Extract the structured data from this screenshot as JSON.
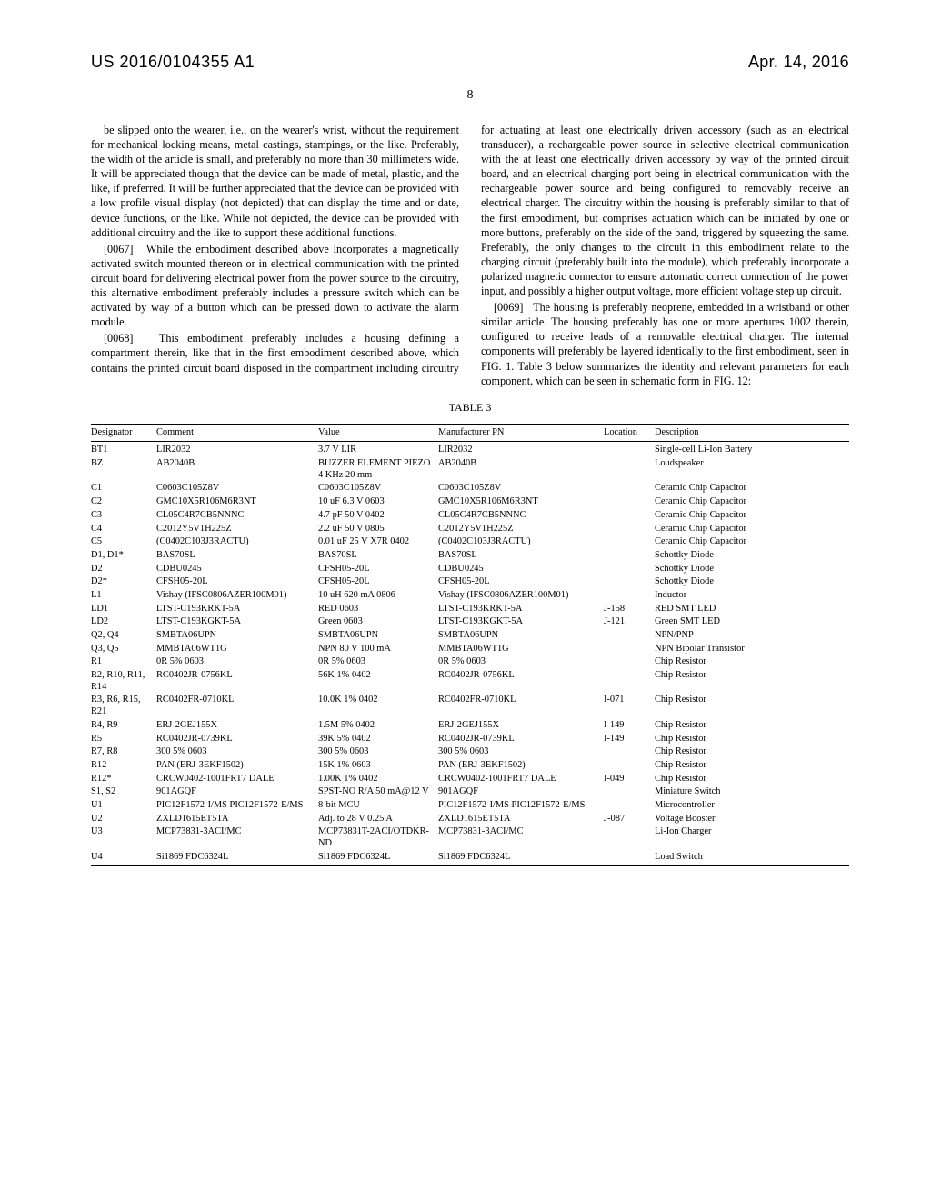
{
  "header": {
    "pubno": "US 2016/0104355 A1",
    "date": "Apr. 14, 2016"
  },
  "page_number": "8",
  "paragraphs": [
    {
      "tag": "",
      "text": "be slipped onto the wearer, i.e., on the wearer's wrist, without the requirement for mechanical locking means, metal castings, stampings, or the like. Preferably, the width of the article is small, and preferably no more than 30 millimeters wide. It will be appreciated though that the device can be made of metal, plastic, and the like, if preferred. It will be further appreciated that the device can be provided with a low profile visual display (not depicted) that can display the time and or date, device functions, or the like. While not depicted, the device can be provided with additional circuitry and the like to support these additional functions."
    },
    {
      "tag": "[0067]",
      "text": "While the embodiment described above incorporates a magnetically activated switch mounted thereon or in electrical communication with the printed circuit board for delivering electrical power from the power source to the circuitry, this alternative embodiment preferably includes a pressure switch which can be activated by way of a button which can be pressed down to activate the alarm module."
    },
    {
      "tag": "[0068]",
      "text": "This embodiment preferably includes a housing defining a compartment therein, like that in the first embodiment described above, which contains the printed circuit board disposed in the compartment including circuitry for actuating at least one electrically driven accessory (such as an electrical transducer), a rechargeable power source in selective electrical communication with the at least one electrically driven accessory by way of the printed circuit board, and an electrical charging port being in electrical communication with the rechargeable power source and being configured to removably receive an electrical charger. The circuitry within the housing is preferably similar to that of the first embodiment, but comprises actuation which can be initiated by one or more buttons, preferably on the side of the band, triggered by squeezing the same. Preferably, the only changes to the circuit in this embodiment relate to the charging circuit (preferably built into the module), which preferably incorporate a polarized magnetic connector to ensure automatic correct connection of the power input, and possibly a higher output voltage, more efficient voltage step up circuit."
    },
    {
      "tag": "[0069]",
      "text": "The housing is preferably neoprene, embedded in a wristband or other similar article. The housing preferably has one or more apertures 1002 therein, configured to receive leads of a removable electrical charger. The internal components will preferably be layered identically to the first embodiment, seen in FIG. 1. Table 3 below summarizes the identity and relevant parameters for each component, which can be seen in schematic form in FIG. 12:"
    }
  ],
  "table": {
    "title": "TABLE 3",
    "columns": [
      "Designator",
      "Comment",
      "Value",
      "Manufacturer PN",
      "Location",
      "Description"
    ],
    "rows": [
      [
        "BT1",
        "LIR2032",
        "3.7 V LIR",
        "LIR2032",
        "",
        "Single-cell Li-Ion Battery"
      ],
      [
        "BZ",
        "AB2040B",
        "BUZZER ELEMENT PIEZO 4 KHz 20 mm",
        "AB2040B",
        "",
        "Loudspeaker"
      ],
      [
        "C1",
        "C0603C105Z8V",
        "C0603C105Z8V",
        "C0603C105Z8V",
        "",
        "Ceramic Chip Capacitor"
      ],
      [
        "C2",
        "GMC10X5R106M6R3NT",
        "10 uF 6.3 V 0603",
        "GMC10X5R106M6R3NT",
        "",
        "Ceramic Chip Capacitor"
      ],
      [
        "C3",
        "CL05C4R7CB5NNNC",
        "4.7 pF 50 V 0402",
        "CL05C4R7CB5NNNC",
        "",
        "Ceramic Chip Capacitor"
      ],
      [
        "C4",
        "C2012Y5V1H225Z",
        "2.2 uF 50 V 0805",
        "C2012Y5V1H225Z",
        "",
        "Ceramic Chip Capacitor"
      ],
      [
        "C5",
        "(C0402C103J3RACTU)",
        "0.01 uF 25 V X7R 0402",
        "(C0402C103J3RACTU)",
        "",
        "Ceramic Chip Capacitor"
      ],
      [
        "D1, D1*",
        "BAS70SL",
        "BAS70SL",
        "BAS70SL",
        "",
        "Schottky Diode"
      ],
      [
        "D2",
        "CDBU0245",
        "CFSH05-20L",
        "CDBU0245",
        "",
        "Schottky Diode"
      ],
      [
        "D2*",
        "CFSH05-20L",
        "CFSH05-20L",
        "CFSH05-20L",
        "",
        "Schottky Diode"
      ],
      [
        "L1",
        "Vishay (IFSC0806AZER100M01)",
        "10 uH 620 mA 0806",
        "Vishay (IFSC0806AZER100M01)",
        "",
        "Inductor"
      ],
      [
        "LD1",
        "LTST-C193KRKT-5A",
        "RED 0603",
        "LTST-C193KRKT-5A",
        "J-158",
        "RED SMT LED"
      ],
      [
        "LD2",
        "LTST-C193KGKT-5A",
        "Green 0603",
        "LTST-C193KGKT-5A",
        "J-121",
        "Green SMT LED"
      ],
      [
        "Q2, Q4",
        "SMBTA06UPN",
        "SMBTA06UPN",
        "SMBTA06UPN",
        "",
        "NPN/PNP"
      ],
      [
        "Q3, Q5",
        "MMBTA06WT1G",
        "NPN 80 V 100 mA",
        "MMBTA06WT1G",
        "",
        "NPN Bipolar Transistor"
      ],
      [
        "R1",
        "0R 5% 0603",
        "0R 5% 0603",
        "0R 5% 0603",
        "",
        "Chip Resistor"
      ],
      [
        "R2, R10, R11, R14",
        "RC0402JR-0756KL",
        "56K 1% 0402",
        "RC0402JR-0756KL",
        "",
        "Chip Resistor"
      ],
      [
        "R3, R6, R15, R21",
        "RC0402FR-0710KL",
        "10.0K 1% 0402",
        "RC0402FR-0710KL",
        "I-071",
        "Chip Resistor"
      ],
      [
        "R4, R9",
        "ERJ-2GEJ155X",
        "1.5M 5% 0402",
        "ERJ-2GEJ155X",
        "I-149",
        "Chip Resistor"
      ],
      [
        "R5",
        "RC0402JR-0739KL",
        "39K 5% 0402",
        "RC0402JR-0739KL",
        "I-149",
        "Chip Resistor"
      ],
      [
        "R7, R8",
        "300 5% 0603",
        "300 5% 0603",
        "300 5% 0603",
        "",
        "Chip Resistor"
      ],
      [
        "R12",
        "PAN (ERJ-3EKF1502)",
        "15K 1% 0603",
        "PAN (ERJ-3EKF1502)",
        "",
        "Chip Resistor"
      ],
      [
        "R12*",
        "CRCW0402-1001FRT7 DALE",
        "1.00K 1% 0402",
        "CRCW0402-1001FRT7 DALE",
        "I-049",
        "Chip Resistor"
      ],
      [
        "S1, S2",
        "901AGQF",
        "SPST-NO R/A 50 mA@12 V",
        "901AGQF",
        "",
        "Miniature Switch"
      ],
      [
        "U1",
        "PIC12F1572-I/MS PIC12F1572-E/MS",
        "8-bit MCU",
        "PIC12F1572-I/MS PIC12F1572-E/MS",
        "",
        "Microcontroller"
      ],
      [
        "U2",
        "ZXLD1615ET5TA",
        "Adj. to 28 V 0.25 A",
        "ZXLD1615ET5TA",
        "J-087",
        "Voltage Booster"
      ],
      [
        "U3",
        "MCP73831-3ACI/MC",
        "MCP73831T-2ACI/OTDKR-ND",
        "MCP73831-3ACI/MC",
        "",
        "Li-Ion Charger"
      ],
      [
        "U4",
        "Si1869 FDC6324L",
        "Si1869 FDC6324L",
        "Si1869 FDC6324L",
        "",
        "Load Switch"
      ]
    ]
  }
}
